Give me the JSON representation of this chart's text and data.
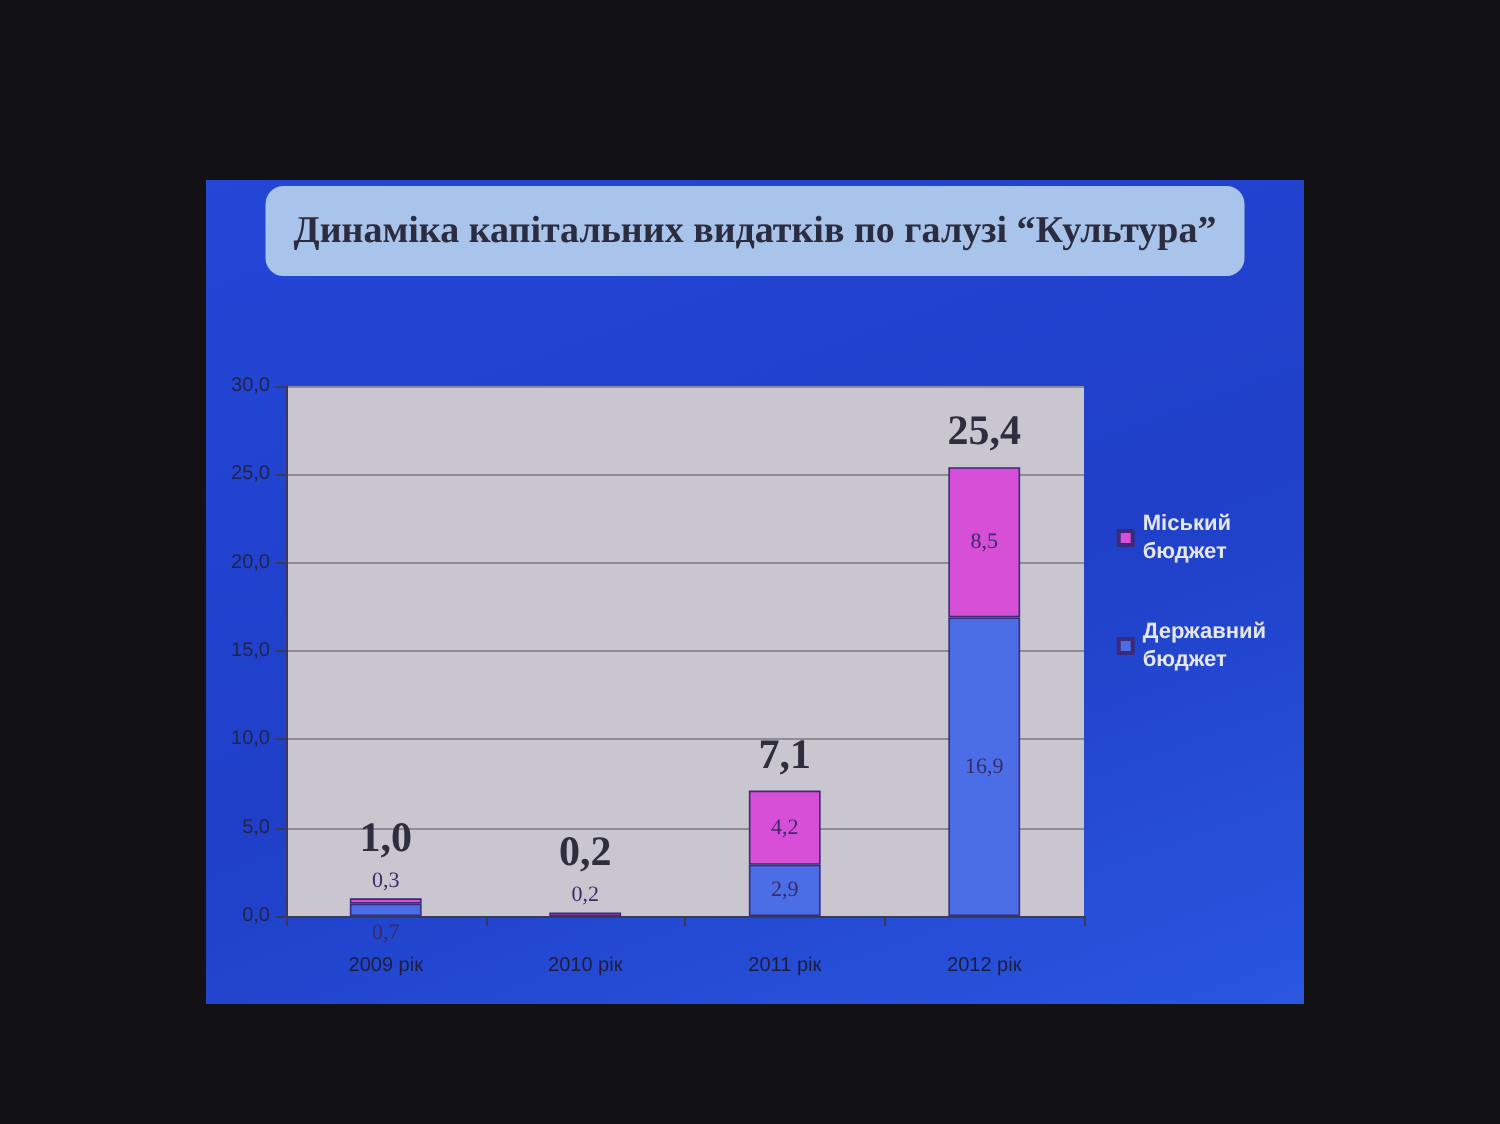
{
  "chart_data": {
    "type": "bar",
    "title": "Динаміка капітальних видатків по галузі “Культура”",
    "categories": [
      "2009 рік",
      "2010 рік",
      "2011 рік",
      "2012 рік"
    ],
    "series": [
      {
        "name": "Державний бюджет",
        "color": "#4b6ee6",
        "values": [
          0.7,
          null,
          2.9,
          16.9
        ],
        "value_labels": [
          "0,7",
          null,
          "2,9",
          "16,9"
        ]
      },
      {
        "name": "Міський бюджет",
        "color": "#d64fd6",
        "values": [
          0.3,
          0.2,
          4.2,
          8.5
        ],
        "value_labels": [
          "0,3",
          "0,2",
          "4,2",
          "8,5"
        ]
      }
    ],
    "stacked": true,
    "totals": [
      "1,0",
      "0,2",
      "7,1",
      "25,4"
    ],
    "ylim": [
      0,
      30
    ],
    "yticks": [
      {
        "value": 0,
        "label": "0,0"
      },
      {
        "value": 5,
        "label": "5,0"
      },
      {
        "value": 10,
        "label": "10,0"
      },
      {
        "value": 15,
        "label": "15,0"
      },
      {
        "value": 20,
        "label": "20,0"
      },
      {
        "value": 25,
        "label": "25,0"
      },
      {
        "value": 30,
        "label": "30,0"
      }
    ],
    "grid": "y",
    "legend": "right"
  }
}
